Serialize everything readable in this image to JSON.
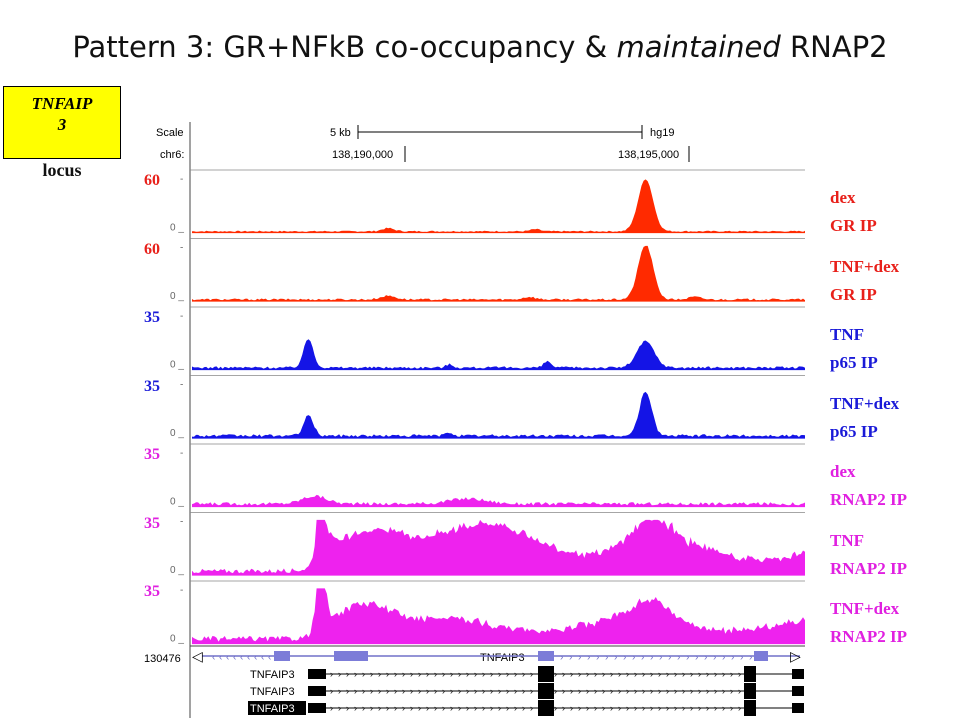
{
  "title": {
    "prefix": "Pattern 3: GR+NFkB co-occupancy & ",
    "emphasis": "maintained",
    "suffix": " RNAP2"
  },
  "locus": {
    "gene": "TNFAIP3",
    "box_line1": "TNFAIP",
    "box_line2": "3",
    "word": "locus"
  },
  "ruler": {
    "scale_label": "Scale",
    "chrom_label": "chr6:",
    "scale_bar": "5 kb",
    "assembly": "hg19",
    "pos1": "138,190,000",
    "pos2": "138,195,000"
  },
  "colors": {
    "gr": "#ff2a00",
    "p65": "#1414e6",
    "rnap2": "#ee22ee",
    "gr_label": "#e8201a",
    "p65_label": "#1a1ad8",
    "rnap2_label": "#e020e0"
  },
  "tracks": [
    {
      "scale_max": "60",
      "axis_top": "-",
      "axis_zero": "0",
      "label_line1": "dex",
      "label_line2": "GR IP",
      "color": "gr",
      "peaks": [
        [
          0.74,
          1.0,
          0.012
        ],
        [
          0.32,
          0.06,
          0.01
        ],
        [
          0.56,
          0.04,
          0.008
        ]
      ],
      "base": 0.03
    },
    {
      "scale_max": "60",
      "axis_top": "-",
      "axis_zero": "0",
      "label_line1": "TNF+dex",
      "label_line2": "GR IP",
      "color": "gr",
      "peaks": [
        [
          0.74,
          1.05,
          0.012
        ],
        [
          0.32,
          0.07,
          0.012
        ],
        [
          0.55,
          0.05,
          0.01
        ],
        [
          0.82,
          0.05,
          0.01
        ]
      ],
      "base": 0.04
    },
    {
      "scale_max": "35",
      "axis_top": "-",
      "axis_zero": "0",
      "label_line1": "TNF",
      "label_line2": "p65 IP",
      "color": "p65",
      "peaks": [
        [
          0.19,
          0.55,
          0.008
        ],
        [
          0.74,
          0.5,
          0.014
        ],
        [
          0.58,
          0.12,
          0.006
        ],
        [
          0.42,
          0.06,
          0.006
        ]
      ],
      "base": 0.05
    },
    {
      "scale_max": "35",
      "axis_top": "-",
      "axis_zero": "0",
      "label_line1": "TNF+dex",
      "label_line2": "p65 IP",
      "color": "p65",
      "peaks": [
        [
          0.19,
          0.38,
          0.008
        ],
        [
          0.74,
          0.85,
          0.01
        ],
        [
          0.42,
          0.06,
          0.006
        ]
      ],
      "base": 0.06
    },
    {
      "scale_max": "35",
      "axis_top": "-",
      "axis_zero": "0",
      "label_line1": "dex",
      "label_line2": "RNAP2 IP",
      "color": "rnap2",
      "peaks": [
        [
          0.2,
          0.15,
          0.02
        ],
        [
          0.45,
          0.1,
          0.03
        ]
      ],
      "base": 0.07
    },
    {
      "scale_max": "35",
      "axis_top": "-",
      "axis_zero": "0",
      "label_line1": "TNF",
      "label_line2": "RNAP2 IP",
      "color": "rnap2",
      "peaks": [
        [
          0.21,
          0.9,
          0.008
        ],
        [
          0.3,
          0.55,
          0.05
        ],
        [
          0.75,
          0.5,
          0.03
        ],
        [
          0.5,
          0.4,
          0.08
        ]
      ],
      "base": 0.1,
      "step_at": 0.2,
      "step_level": 0.55
    },
    {
      "scale_max": "35",
      "axis_top": "-",
      "axis_zero": "0",
      "label_line1": "TNF+dex",
      "label_line2": "RNAP2 IP",
      "color": "rnap2",
      "peaks": [
        [
          0.21,
          1.0,
          0.008
        ],
        [
          0.28,
          0.5,
          0.04
        ],
        [
          0.75,
          0.35,
          0.03
        ]
      ],
      "base": 0.12,
      "step_at": 0.2,
      "step_level": 0.4
    }
  ],
  "gene_tracks": {
    "left_id": "130476",
    "main_label": "TNFAIP3",
    "transcripts": [
      "TNFAIP3",
      "TNFAIP3",
      "TNFAIP3"
    ]
  }
}
